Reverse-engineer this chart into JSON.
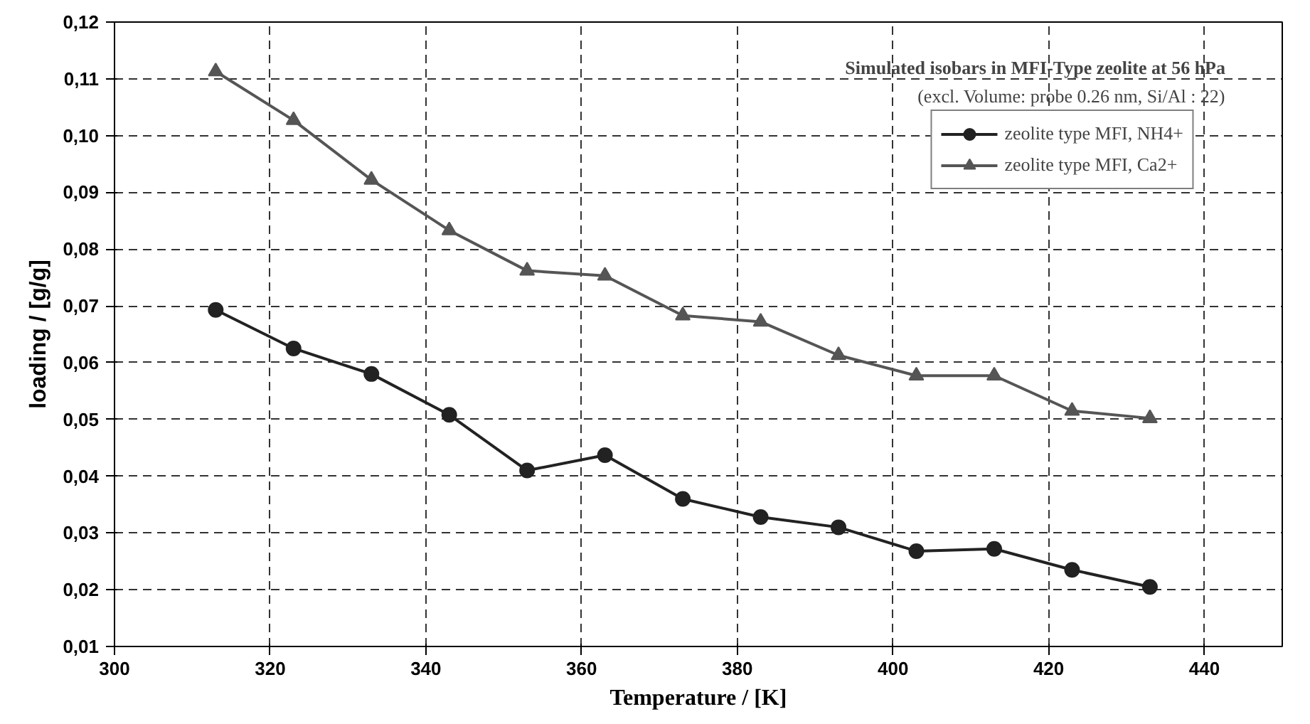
{
  "chart_data": {
    "type": "line",
    "xlabel": "Temperature / [K]",
    "ylabel": "loading / [g/g]",
    "legend_title": "Simulated isobars in MFI-Type zeolite at 56 hPa",
    "annotations": [
      "(excl. Volume: probe 0.26 nm, Si/Al : 22)"
    ],
    "x": [
      313,
      323,
      333,
      343,
      353,
      363,
      373,
      383,
      393,
      403,
      413,
      423,
      433
    ],
    "series": [
      {
        "name": "zeolite type MFI, NH4+",
        "color": "#222222",
        "marker": "circle",
        "values": [
          0.0693,
          0.0625,
          0.058,
          0.0508,
          0.041,
          0.0437,
          0.036,
          0.0328,
          0.031,
          0.0268,
          0.0272,
          0.0235,
          0.0205
        ]
      },
      {
        "name": "zeolite type MFI, Ca2+",
        "color": "#555555",
        "marker": "triangle",
        "values": [
          0.1113,
          0.1027,
          0.0922,
          0.0833,
          0.0762,
          0.0753,
          0.0683,
          0.0672,
          0.0613,
          0.0577,
          0.0577,
          0.0515,
          0.0502
        ]
      }
    ],
    "xlim": [
      300,
      450
    ],
    "xticks": [
      300,
      320,
      340,
      360,
      380,
      400,
      420,
      440
    ],
    "ylim": [
      0.01,
      0.12
    ],
    "yticks": [
      {
        "value": 0.01,
        "label": "0,01"
      },
      {
        "value": 0.02,
        "label": "0,02"
      },
      {
        "value": 0.03,
        "label": "0,03"
      },
      {
        "value": 0.04,
        "label": "0,04"
      },
      {
        "value": 0.05,
        "label": "0,05"
      },
      {
        "value": 0.06,
        "label": "0,06"
      },
      {
        "value": 0.07,
        "label": "0,07"
      },
      {
        "value": 0.08,
        "label": "0,08"
      },
      {
        "value": 0.09,
        "label": "0,09"
      },
      {
        "value": 0.1,
        "label": "0,10"
      },
      {
        "value": 0.11,
        "label": "0,11"
      },
      {
        "value": 0.12,
        "label": "0,12"
      }
    ],
    "grid": true,
    "legend": "top right",
    "line_style": "solid"
  }
}
